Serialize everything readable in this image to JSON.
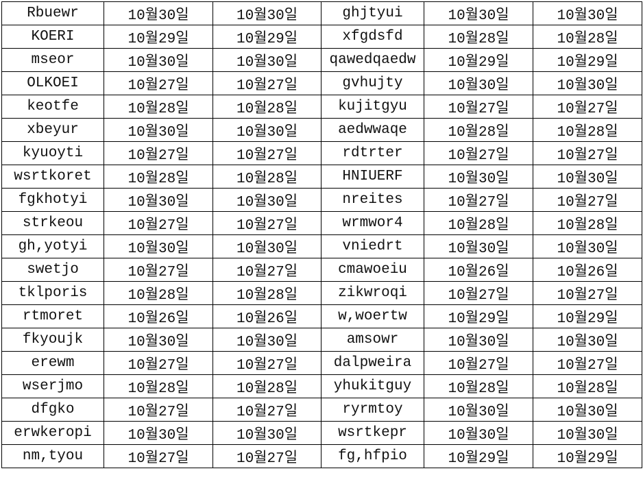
{
  "rows": [
    [
      "Rbuewr",
      "10월30일",
      "10월30일",
      "ghjtyui",
      "10월30일",
      "10월30일"
    ],
    [
      "KOERI",
      "10월29일",
      "10월29일",
      "xfgdsfd",
      "10월28일",
      "10월28일"
    ],
    [
      "mseor",
      "10월30일",
      "10월30일",
      "qawedqaedw",
      "10월29일",
      "10월29일"
    ],
    [
      "OLKOEI",
      "10월27일",
      "10월27일",
      "gvhujty",
      "10월30일",
      "10월30일"
    ],
    [
      "keotfe",
      "10월28일",
      "10월28일",
      "kujitgyu",
      "10월27일",
      "10월27일"
    ],
    [
      "xbeyur",
      "10월30일",
      "10월30일",
      "aedwwaqe",
      "10월28일",
      "10월28일"
    ],
    [
      "kyuoyti",
      "10월27일",
      "10월27일",
      "rdtrter",
      "10월27일",
      "10월27일"
    ],
    [
      "wsrtkoret",
      "10월28일",
      "10월28일",
      "HNIUERF",
      "10월30일",
      "10월30일"
    ],
    [
      "fgkhotyi",
      "10월30일",
      "10월30일",
      "nreites",
      "10월27일",
      "10월27일"
    ],
    [
      "strkeou",
      "10월27일",
      "10월27일",
      "wrmwor4",
      "10월28일",
      "10월28일"
    ],
    [
      "gh,yotyi",
      "10월30일",
      "10월30일",
      "vniedrt",
      "10월30일",
      "10월30일"
    ],
    [
      "swetjo",
      "10월27일",
      "10월27일",
      "cmawoeiu",
      "10월26일",
      "10월26일"
    ],
    [
      "tklporis",
      "10월28일",
      "10월28일",
      "zikwroqi",
      "10월27일",
      "10월27일"
    ],
    [
      "rtmoret",
      "10월26일",
      "10월26일",
      "w,woertw",
      "10월29일",
      "10월29일"
    ],
    [
      "fkyoujk",
      "10월30일",
      "10월30일",
      "amsowr",
      "10월30일",
      "10월30일"
    ],
    [
      "erewm",
      "10월27일",
      "10월27일",
      "dalpweira",
      "10월27일",
      "10월27일"
    ],
    [
      "wserjmo",
      "10월28일",
      "10월28일",
      "yhukitguy",
      "10월28일",
      "10월28일"
    ],
    [
      "dfgko",
      "10월27일",
      "10월27일",
      "ryrmtoy",
      "10월30일",
      "10월30일"
    ],
    [
      "erwkeropi",
      "10월30일",
      "10월30일",
      "wsrtkepr",
      "10월30일",
      "10월30일"
    ],
    [
      "nm,tyou",
      "10월27일",
      "10월27일",
      "fg,hfpio",
      "10월29일",
      "10월29일"
    ]
  ]
}
